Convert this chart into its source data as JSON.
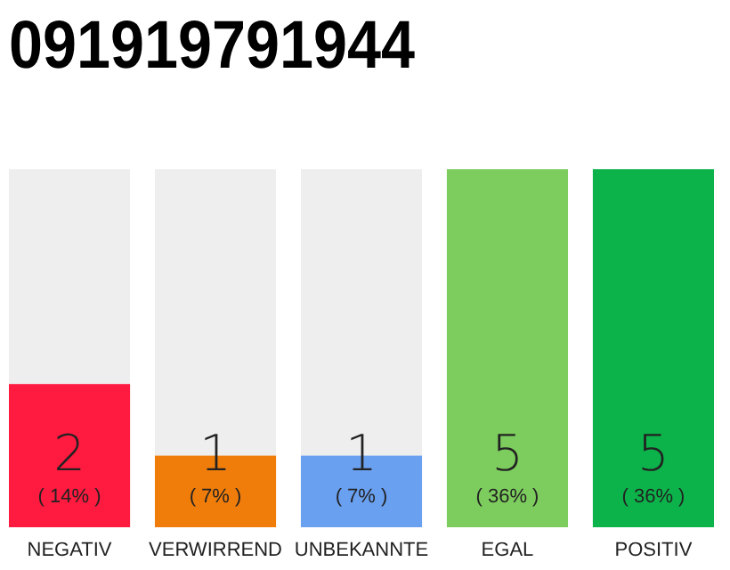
{
  "chart_data": {
    "type": "bar",
    "title": "091919791944",
    "categories": [
      "NEGATIV",
      "VERWIRREND",
      "UNBEKANNTE",
      "EGAL",
      "POSITIV"
    ],
    "values": [
      2,
      1,
      1,
      5,
      5
    ],
    "colors": [
      "#ff1a3f",
      "#f07d0a",
      "#6aa0f0",
      "#7dcd5e",
      "#0cb34a"
    ],
    "ylim": [
      0,
      5
    ],
    "tick_labels": "x",
    "data_labels": true,
    "annotations": [
      "( 14% )",
      "( 7% )",
      "( 7% )",
      "( 36% )",
      "( 36% )"
    ]
  }
}
